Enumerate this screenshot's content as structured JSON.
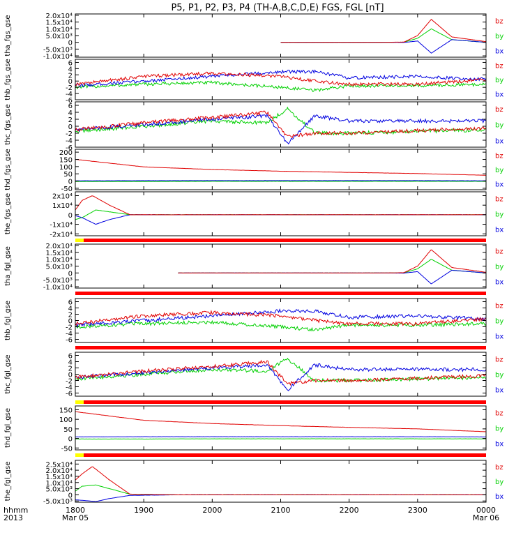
{
  "title": "P5, P1, P2, P3, P4 (TH-A,B,C,D,E) FGS, FGL [nT]",
  "colors": {
    "bz": "#e00000",
    "by": "#00d000",
    "bx": "#0000e0",
    "status_red": "#ff0000",
    "status_yellow": "#ffff00",
    "frame": "#000000"
  },
  "component_labels": [
    "bz",
    "by",
    "bx"
  ],
  "x_axis": {
    "row_label_1": "hhmm",
    "row_label_2": "2013",
    "ticks": [
      "1800",
      "1900",
      "2000",
      "2100",
      "2200",
      "2300",
      "0000"
    ],
    "tick_hours": [
      18,
      19,
      20,
      21,
      22,
      23,
      24
    ],
    "start_date": "Mar 05",
    "end_date": "Mar 06",
    "range_hours": [
      18,
      24
    ]
  },
  "chart_data": [
    {
      "type": "line",
      "ylabel": "tha_fgs_gse",
      "ytick_labels": [
        "2.0x10⁴",
        "1.5x10⁴",
        "1.0x10⁴",
        "5.0x10³",
        "0",
        "-5.0x10³",
        "-1.0x10⁴"
      ],
      "ytick_values": [
        20000,
        15000,
        10000,
        5000,
        0,
        -5000,
        -10000
      ],
      "ylim": [
        -11000,
        21000
      ],
      "data_start_hour": 21.0,
      "series": [
        {
          "name": "bz",
          "x": [
            21.0,
            22.5,
            22.8,
            23.0,
            23.2,
            23.5,
            24.0
          ],
          "values": [
            0,
            0,
            200,
            5000,
            17000,
            4000,
            500
          ]
        },
        {
          "name": "by",
          "x": [
            21.0,
            22.5,
            22.8,
            23.0,
            23.2,
            23.5,
            24.0
          ],
          "values": [
            0,
            0,
            100,
            3000,
            10000,
            2000,
            0
          ]
        },
        {
          "name": "bx",
          "x": [
            21.0,
            22.5,
            22.8,
            23.0,
            23.2,
            23.5,
            24.0
          ],
          "values": [
            0,
            0,
            -100,
            1000,
            -8000,
            2000,
            0
          ]
        }
      ]
    },
    {
      "type": "line",
      "ylabel": "thb_fgs_gse",
      "ytick_labels": [
        "6",
        "4",
        "2",
        "0",
        "-2",
        "-4",
        "-6"
      ],
      "ytick_values": [
        6,
        4,
        2,
        0,
        -2,
        -4,
        -6
      ],
      "ylim": [
        -6,
        7
      ],
      "series": [
        {
          "name": "bz",
          "x": [
            18.0,
            19.0,
            20.0,
            21.0,
            21.5,
            22.0,
            23.0,
            24.0
          ],
          "values": [
            -1.0,
            1.5,
            2.5,
            1.5,
            0,
            -1.0,
            -1.0,
            0.5
          ]
        },
        {
          "name": "by",
          "x": [
            18.0,
            19.0,
            20.0,
            21.0,
            21.5,
            22.0,
            23.0,
            24.0
          ],
          "values": [
            -2.0,
            -1.0,
            -0.5,
            -2.0,
            -3.0,
            -1.5,
            -1.5,
            -1.0
          ]
        },
        {
          "name": "bx",
          "x": [
            18.0,
            19.0,
            20.0,
            21.0,
            21.5,
            22.0,
            23.0,
            24.0
          ],
          "values": [
            -1.5,
            0,
            1.5,
            3.0,
            3.0,
            1.0,
            1.5,
            0.5
          ]
        }
      ]
    },
    {
      "type": "line",
      "ylabel": "thc_fgs_gse",
      "ytick_labels": [
        "6",
        "4",
        "2",
        "0",
        "-2",
        "-4",
        "-6"
      ],
      "ytick_values": [
        6,
        4,
        2,
        0,
        -2,
        -4,
        -6
      ],
      "ylim": [
        -6,
        7
      ],
      "series": [
        {
          "name": "bz",
          "x": [
            18.0,
            19.0,
            20.0,
            20.8,
            21.1,
            21.5,
            22.0,
            24.0
          ],
          "values": [
            -1.0,
            1.0,
            2.5,
            4.0,
            -3.0,
            -2.0,
            -2.0,
            -0.5
          ]
        },
        {
          "name": "by",
          "x": [
            18.0,
            19.0,
            20.0,
            20.8,
            21.1,
            21.5,
            22.0,
            24.0
          ],
          "values": [
            -1.5,
            0,
            1.5,
            1.0,
            5.0,
            -2.0,
            -2.0,
            -1.0
          ]
        },
        {
          "name": "bx",
          "x": [
            18.0,
            19.0,
            20.0,
            20.8,
            21.1,
            21.5,
            22.0,
            24.0
          ],
          "values": [
            -1.0,
            0.5,
            2.0,
            3.0,
            -5.0,
            3.0,
            1.5,
            1.5
          ]
        }
      ]
    },
    {
      "type": "line",
      "ylabel": "thd_fgs_gse",
      "ytick_labels": [
        "200",
        "150",
        "100",
        "50",
        "0",
        "-50"
      ],
      "ytick_values": [
        200,
        150,
        100,
        50,
        0,
        -50
      ],
      "ylim": [
        -60,
        220
      ],
      "series": [
        {
          "name": "bz",
          "x": [
            18.0,
            19.0,
            20.0,
            21.0,
            22.0,
            23.0,
            24.0
          ],
          "values": [
            150,
            98,
            80,
            68,
            60,
            52,
            40
          ]
        },
        {
          "name": "by",
          "x": [
            18.0,
            19.0,
            20.0,
            21.0,
            22.0,
            23.0,
            24.0
          ],
          "values": [
            -3,
            -3,
            -2,
            -2,
            -2,
            -2,
            -2
          ]
        },
        {
          "name": "bx",
          "x": [
            18.0,
            19.0,
            20.0,
            21.0,
            22.0,
            23.0,
            24.0
          ],
          "values": [
            2,
            3,
            3,
            3,
            3,
            3,
            2
          ]
        }
      ]
    },
    {
      "type": "line",
      "ylabel": "the_fgs_gse",
      "ytick_labels": [
        "2x10⁴",
        "1x10⁴",
        "0",
        "-1x10⁴",
        "-2x10⁴"
      ],
      "ytick_values": [
        20000,
        10000,
        0,
        -10000,
        -20000
      ],
      "ylim": [
        -22000,
        24000
      ],
      "series": [
        {
          "name": "bz",
          "x": [
            18.0,
            18.1,
            18.25,
            18.5,
            18.8,
            19.5,
            24.0
          ],
          "values": [
            5000,
            15000,
            20000,
            10000,
            0,
            0,
            0
          ]
        },
        {
          "name": "by",
          "x": [
            18.0,
            18.1,
            18.3,
            18.5,
            18.8,
            19.5,
            24.0
          ],
          "values": [
            -5000,
            -3000,
            5000,
            3000,
            0,
            0,
            0
          ]
        },
        {
          "name": "bx",
          "x": [
            18.0,
            18.1,
            18.3,
            18.5,
            18.8,
            19.5,
            24.0
          ],
          "values": [
            -1000,
            -3000,
            -10000,
            -5000,
            0,
            0,
            0
          ]
        }
      ]
    },
    {
      "type": "line",
      "ylabel": "tha_fgl_gse",
      "ytick_labels": [
        "2.0x10⁴",
        "1.5x10⁴",
        "1.0x10⁴",
        "5.0x10³",
        "0",
        "-5.0x10³",
        "-1.0x10⁴"
      ],
      "ytick_values": [
        20000,
        15000,
        10000,
        5000,
        0,
        -5000,
        -10000
      ],
      "ylim": [
        -11000,
        21000
      ],
      "data_start_hour": 19.5,
      "series": [
        {
          "name": "bz",
          "x": [
            19.5,
            22.5,
            22.8,
            23.0,
            23.2,
            23.5,
            24.0
          ],
          "values": [
            0,
            0,
            200,
            5000,
            17000,
            4000,
            500
          ]
        },
        {
          "name": "by",
          "x": [
            19.5,
            22.5,
            22.8,
            23.0,
            23.2,
            23.5,
            24.0
          ],
          "values": [
            0,
            0,
            100,
            3000,
            10000,
            2000,
            0
          ]
        },
        {
          "name": "bx",
          "x": [
            19.5,
            22.5,
            22.8,
            23.0,
            23.2,
            23.5,
            24.0
          ],
          "values": [
            0,
            0,
            -100,
            1000,
            -8000,
            2000,
            0
          ]
        }
      ]
    },
    {
      "type": "line",
      "ylabel": "thb_fgl_gse",
      "ytick_labels": [
        "6",
        "4",
        "2",
        "0",
        "-2",
        "-4",
        "-6"
      ],
      "ytick_values": [
        6,
        4,
        2,
        0,
        -2,
        -4,
        -6
      ],
      "ylim": [
        -7,
        7
      ],
      "series": [
        {
          "name": "bz",
          "x": [
            18.0,
            19.0,
            20.0,
            21.0,
            21.5,
            22.0,
            23.0,
            24.0
          ],
          "values": [
            -1.0,
            1.5,
            2.5,
            1.5,
            0,
            -1.0,
            -1.0,
            0.5
          ]
        },
        {
          "name": "by",
          "x": [
            18.0,
            19.0,
            20.0,
            21.0,
            21.5,
            22.0,
            23.0,
            24.0
          ],
          "values": [
            -2.0,
            -1.0,
            -0.5,
            -2.0,
            -3.0,
            -1.5,
            -1.5,
            -1.0
          ]
        },
        {
          "name": "bx",
          "x": [
            18.0,
            19.0,
            20.0,
            21.0,
            21.5,
            22.0,
            23.0,
            24.0
          ],
          "values": [
            -1.5,
            0,
            1.5,
            3.0,
            3.0,
            1.0,
            1.5,
            0.5
          ]
        }
      ]
    },
    {
      "type": "line",
      "ylabel": "thc_fgl_gse",
      "ytick_labels": [
        "6",
        "4",
        "2",
        "0",
        "-2",
        "-4",
        "-6"
      ],
      "ytick_values": [
        6,
        4,
        2,
        0,
        -2,
        -4,
        -6
      ],
      "ylim": [
        -7,
        7
      ],
      "series": [
        {
          "name": "bz",
          "x": [
            18.0,
            19.0,
            20.0,
            20.8,
            21.1,
            21.5,
            22.0,
            24.0
          ],
          "values": [
            -1.0,
            1.0,
            2.5,
            4.0,
            -3.0,
            -2.0,
            -2.0,
            -0.5
          ]
        },
        {
          "name": "by",
          "x": [
            18.0,
            19.0,
            20.0,
            20.8,
            21.1,
            21.5,
            22.0,
            24.0
          ],
          "values": [
            -1.5,
            0,
            1.5,
            1.0,
            5.0,
            -2.0,
            -2.0,
            -1.0
          ]
        },
        {
          "name": "bx",
          "x": [
            18.0,
            19.0,
            20.0,
            20.8,
            21.1,
            21.5,
            22.0,
            24.0
          ],
          "values": [
            -1.0,
            0.5,
            2.0,
            3.0,
            -5.0,
            3.0,
            1.5,
            1.5
          ]
        }
      ]
    },
    {
      "type": "line",
      "ylabel": "thd_fgl_gse",
      "ytick_labels": [
        "150",
        "100",
        "50",
        "0",
        "-50"
      ],
      "ytick_values": [
        150,
        100,
        50,
        0,
        -50
      ],
      "ylim": [
        -60,
        170
      ],
      "series": [
        {
          "name": "bz",
          "x": [
            18.0,
            19.0,
            20.0,
            21.0,
            22.0,
            23.0,
            24.0
          ],
          "values": [
            140,
            95,
            78,
            67,
            58,
            50,
            35
          ]
        },
        {
          "name": "by",
          "x": [
            18.0,
            19.0,
            20.0,
            21.0,
            22.0,
            23.0,
            24.0
          ],
          "values": [
            -3,
            -3,
            -2,
            -2,
            -2,
            -2,
            -2
          ]
        },
        {
          "name": "bx",
          "x": [
            18.0,
            19.0,
            20.0,
            21.0,
            22.0,
            23.0,
            24.0
          ],
          "values": [
            8,
            9,
            9,
            9,
            9,
            9,
            8
          ]
        }
      ]
    },
    {
      "type": "line",
      "ylabel": "the_fgl_gse",
      "ytick_labels": [
        "2.5x10⁴",
        "2.0x10⁴",
        "1.5x10⁴",
        "1.0x10⁴",
        "5.0x10³",
        "0",
        "-5.0x10³"
      ],
      "ytick_values": [
        25000,
        20000,
        15000,
        10000,
        5000,
        0,
        -5000
      ],
      "ylim": [
        -6000,
        28000
      ],
      "series": [
        {
          "name": "bz",
          "x": [
            18.0,
            18.1,
            18.25,
            18.5,
            18.8,
            19.5,
            24.0
          ],
          "values": [
            12000,
            17000,
            23000,
            12000,
            500,
            0,
            0
          ]
        },
        {
          "name": "by",
          "x": [
            18.0,
            18.1,
            18.3,
            18.5,
            18.8,
            19.5,
            24.0
          ],
          "values": [
            3000,
            7000,
            8000,
            5000,
            500,
            0,
            0
          ]
        },
        {
          "name": "bx",
          "x": [
            18.0,
            18.1,
            18.3,
            18.5,
            18.8,
            19.5,
            24.0
          ],
          "values": [
            -4000,
            -4500,
            -5500,
            -3000,
            -500,
            0,
            0
          ]
        }
      ]
    }
  ]
}
